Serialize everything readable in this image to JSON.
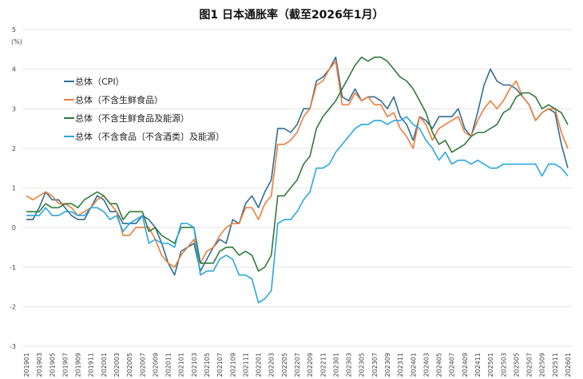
{
  "chart_data": {
    "type": "line",
    "title": "图1  日本通胀率（截至2026年1月）",
    "ylabel": "(%)",
    "xlabel": "",
    "ylim": [
      -3,
      5
    ],
    "yticks": [
      "5",
      "4",
      "3",
      "2",
      "1",
      "0",
      "-1",
      "-2",
      "-3"
    ],
    "grid": true,
    "legend_position": "top-left",
    "x": [
      "201901",
      "201902",
      "201903",
      "201904",
      "201905",
      "201906",
      "201907",
      "201908",
      "201909",
      "201910",
      "201911",
      "201912",
      "202001",
      "202002",
      "202003",
      "202004",
      "202005",
      "202006",
      "202007",
      "202008",
      "202009",
      "202010",
      "202011",
      "202012",
      "202101",
      "202102",
      "202103",
      "202104",
      "202105",
      "202106",
      "202107",
      "202108",
      "202109",
      "202110",
      "202111",
      "202112",
      "202201",
      "202202",
      "202203",
      "202204",
      "202205",
      "202206",
      "202207",
      "202208",
      "202209",
      "202210",
      "202211",
      "202212",
      "202301",
      "202302",
      "202303",
      "202304",
      "202305",
      "202306",
      "202307",
      "202308",
      "202309",
      "202310",
      "202311",
      "202312",
      "202401",
      "202402",
      "202403",
      "202404",
      "202405",
      "202406",
      "202407",
      "202408",
      "202409",
      "202410",
      "202411",
      "202412",
      "202501",
      "202502",
      "202503",
      "202504",
      "202505",
      "202506",
      "202507",
      "202508",
      "202509",
      "202510",
      "202511",
      "202512",
      "202601"
    ],
    "series": [
      {
        "name": "总体（CPI）",
        "color": "#2e6e93",
        "values": [
          0.2,
          0.2,
          0.5,
          0.9,
          0.7,
          0.7,
          0.5,
          0.3,
          0.2,
          0.2,
          0.5,
          0.8,
          0.7,
          0.4,
          0.4,
          0.1,
          0.1,
          0.1,
          0.3,
          0.2,
          0.0,
          -0.4,
          -0.9,
          -1.2,
          -0.6,
          -0.5,
          -0.4,
          -1.1,
          -0.8,
          -0.5,
          -0.3,
          -0.4,
          0.2,
          0.1,
          0.6,
          0.8,
          0.5,
          0.9,
          1.2,
          2.5,
          2.5,
          2.4,
          2.6,
          3.0,
          3.0,
          3.7,
          3.8,
          4.0,
          4.3,
          3.3,
          3.2,
          3.5,
          3.2,
          3.3,
          3.3,
          3.2,
          3.0,
          3.3,
          2.8,
          2.6,
          2.2,
          2.8,
          2.7,
          2.5,
          2.8,
          2.8,
          2.8,
          3.0,
          2.5,
          2.3,
          2.9,
          3.6,
          4.0,
          3.7,
          3.6,
          3.6,
          3.5,
          3.3,
          3.1,
          2.7,
          2.9,
          3.0,
          2.9,
          2.1,
          1.5
        ]
      },
      {
        "name": "总体（不含生鲜食品）",
        "color": "#ed7d3a",
        "values": [
          0.8,
          0.7,
          0.8,
          0.9,
          0.8,
          0.6,
          0.6,
          0.5,
          0.3,
          0.4,
          0.5,
          0.7,
          0.8,
          0.6,
          0.4,
          -0.2,
          -0.2,
          0.0,
          0.0,
          0.0,
          -0.3,
          -0.7,
          -0.9,
          -1.0,
          -0.7,
          -0.5,
          -0.3,
          -0.9,
          -0.6,
          -0.5,
          -0.2,
          0.0,
          0.1,
          0.1,
          0.5,
          0.5,
          0.2,
          0.6,
          0.8,
          2.1,
          2.1,
          2.2,
          2.4,
          2.8,
          3.0,
          3.6,
          3.7,
          4.0,
          4.2,
          3.1,
          3.1,
          3.4,
          3.2,
          3.3,
          3.1,
          3.1,
          2.8,
          2.9,
          2.5,
          2.3,
          2.0,
          2.8,
          2.6,
          2.2,
          2.5,
          2.6,
          2.7,
          2.8,
          2.4,
          2.3,
          2.7,
          3.0,
          3.2,
          3.0,
          3.2,
          3.5,
          3.7,
          3.3,
          3.1,
          2.7,
          2.9,
          3.0,
          3.0,
          2.4,
          2.0
        ]
      },
      {
        "name": "总体（不含生鲜食品及能源）",
        "color": "#2f7a3a",
        "values": [
          0.4,
          0.4,
          0.4,
          0.6,
          0.5,
          0.5,
          0.6,
          0.6,
          0.5,
          0.7,
          0.8,
          0.9,
          0.8,
          0.6,
          0.6,
          0.2,
          0.4,
          0.4,
          0.4,
          -0.1,
          0.0,
          -0.2,
          -0.3,
          -0.4,
          0.0,
          0.0,
          0.0,
          -0.9,
          -0.9,
          -0.9,
          -0.6,
          -0.5,
          -0.5,
          -0.7,
          -0.6,
          -0.7,
          -1.1,
          -1.0,
          -0.7,
          0.8,
          0.8,
          1.0,
          1.2,
          1.6,
          1.8,
          2.5,
          2.8,
          3.0,
          3.2,
          3.5,
          3.8,
          4.1,
          4.3,
          4.2,
          4.3,
          4.3,
          4.2,
          4.0,
          3.8,
          3.7,
          3.5,
          3.2,
          2.9,
          2.4,
          2.1,
          2.2,
          1.9,
          2.0,
          2.1,
          2.3,
          2.4,
          2.4,
          2.5,
          2.6,
          2.9,
          3.0,
          3.3,
          3.4,
          3.4,
          3.3,
          3.0,
          3.1,
          3.0,
          2.9,
          2.6
        ]
      },
      {
        "name": "总体（不含食品〔不含酒类〕及能源）",
        "color": "#2aa7e0",
        "values": [
          0.3,
          0.3,
          0.3,
          0.5,
          0.3,
          0.3,
          0.4,
          0.4,
          0.3,
          0.3,
          0.5,
          0.5,
          0.4,
          0.2,
          0.3,
          -0.1,
          0.1,
          0.2,
          0.3,
          -0.4,
          -0.3,
          -0.4,
          -0.4,
          -0.5,
          0.1,
          0.1,
          0.0,
          -1.2,
          -1.1,
          -1.1,
          -0.8,
          -0.7,
          -0.8,
          -1.2,
          -1.2,
          -1.3,
          -1.9,
          -1.8,
          -1.6,
          0.1,
          0.2,
          0.2,
          0.4,
          0.7,
          0.9,
          1.5,
          1.5,
          1.6,
          1.9,
          2.1,
          2.3,
          2.5,
          2.6,
          2.6,
          2.7,
          2.7,
          2.6,
          2.7,
          2.7,
          2.8,
          2.6,
          2.5,
          2.2,
          2.0,
          1.7,
          1.9,
          1.6,
          1.7,
          1.7,
          1.6,
          1.7,
          1.6,
          1.5,
          1.5,
          1.6,
          1.6,
          1.6,
          1.6,
          1.6,
          1.6,
          1.3,
          1.6,
          1.6,
          1.5,
          1.3
        ]
      }
    ]
  }
}
